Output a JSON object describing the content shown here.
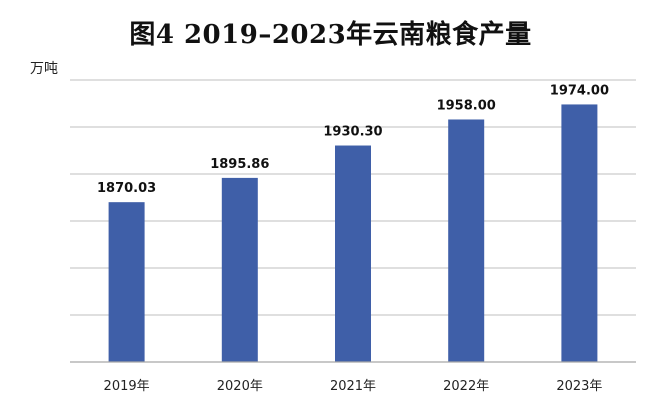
{
  "chart_data": {
    "type": "bar",
    "title": "图4  2019–2023年云南粮食产量",
    "ylabel": "万吨",
    "xlabel": "",
    "categories": [
      "2019年",
      "2020年",
      "2021年",
      "2022年",
      "2023年"
    ],
    "values": [
      1870.03,
      1895.86,
      1930.3,
      1958.0,
      1974.0
    ],
    "data_labels": [
      "1870.03",
      "1895.86",
      "1930.30",
      "1958.00",
      "1974.00"
    ],
    "ylim": [
      1700,
      2000
    ],
    "y_grid_step": 50,
    "grid": true,
    "legend": "none",
    "bar_color": "#3f5fa8"
  }
}
